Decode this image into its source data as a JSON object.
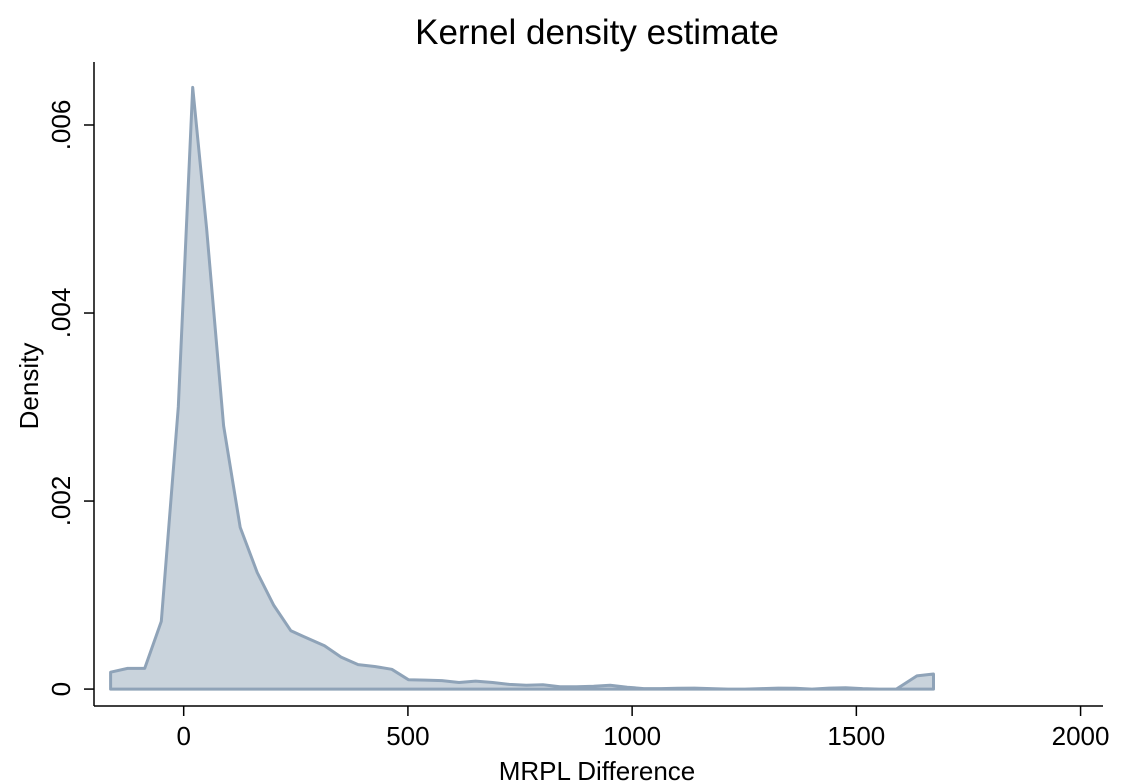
{
  "chart_data": {
    "type": "area",
    "title": "Kernel density estimate",
    "xlabel": "MRPL Difference",
    "ylabel": "Density",
    "xlim": [
      -200,
      2050
    ],
    "ylim": [
      -0.00018,
      0.00667
    ],
    "x_ticks": [
      0,
      500,
      1000,
      1500,
      2000
    ],
    "x_tick_labels": [
      "0",
      "500",
      "1000",
      "1500",
      "2000"
    ],
    "y_ticks": [
      0,
      0.002,
      0.004,
      0.006
    ],
    "y_tick_labels": [
      "0",
      ".002",
      ".004",
      ".006"
    ],
    "grid": false,
    "legend": "none",
    "colors": {
      "fill": "#c9d3dc",
      "line": "#8fa3b8"
    },
    "series": [
      {
        "x": [
          -163,
          -125,
          -87,
          -50,
          -12,
          20,
          51,
          89,
          126,
          164,
          201,
          239,
          276,
          314,
          351,
          389,
          426,
          464,
          501,
          539,
          576,
          614,
          651,
          689,
          726,
          764,
          801,
          839,
          876,
          914,
          951,
          989,
          1026,
          1064,
          1101,
          1139,
          1176,
          1214,
          1251,
          1289,
          1326,
          1364,
          1401,
          1439,
          1476,
          1514,
          1551,
          1589,
          1635,
          1672
        ],
        "y": [
          0.00018,
          0.00022,
          0.00022,
          0.00072,
          0.003,
          0.0064,
          0.0049,
          0.0028,
          0.00172,
          0.00124,
          0.00089,
          0.00062,
          0.00054,
          0.00046,
          0.00034,
          0.00026,
          0.00024,
          0.00021,
          0.0001,
          9.5e-05,
          9e-05,
          7e-05,
          8.5e-05,
          7e-05,
          5e-05,
          4e-05,
          4.5e-05,
          2.5e-05,
          2.5e-05,
          3e-05,
          4e-05,
          2e-05,
          5e-06,
          5e-06,
          8e-06,
          1e-05,
          5e-06,
          0.0,
          0.0,
          5e-06,
          1e-05,
          8e-06,
          0.0,
          1e-05,
          1.5e-05,
          5e-06,
          0.0,
          0.0,
          0.00014,
          0.00016
        ]
      }
    ]
  }
}
